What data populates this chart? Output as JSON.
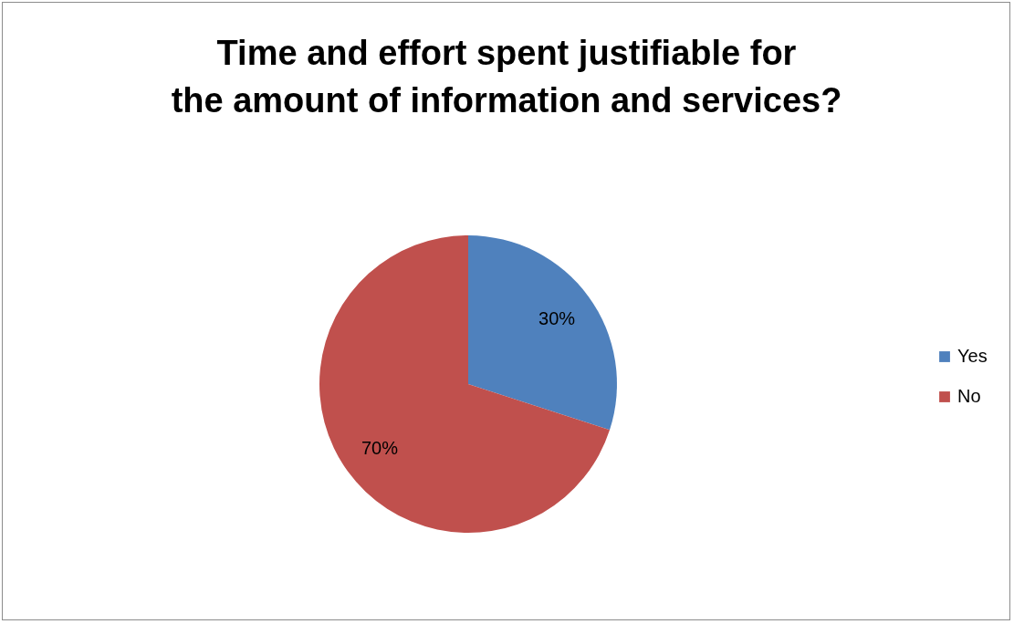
{
  "chart_data": {
    "type": "pie",
    "title": "Time and effort spent justifiable for the amount of information and services?",
    "categories": [
      "Yes",
      "No"
    ],
    "values": [
      30,
      70
    ],
    "colors": [
      "#4f81bd",
      "#c0504d"
    ],
    "value_labels": [
      "30%",
      "70%"
    ],
    "legend": "right"
  }
}
